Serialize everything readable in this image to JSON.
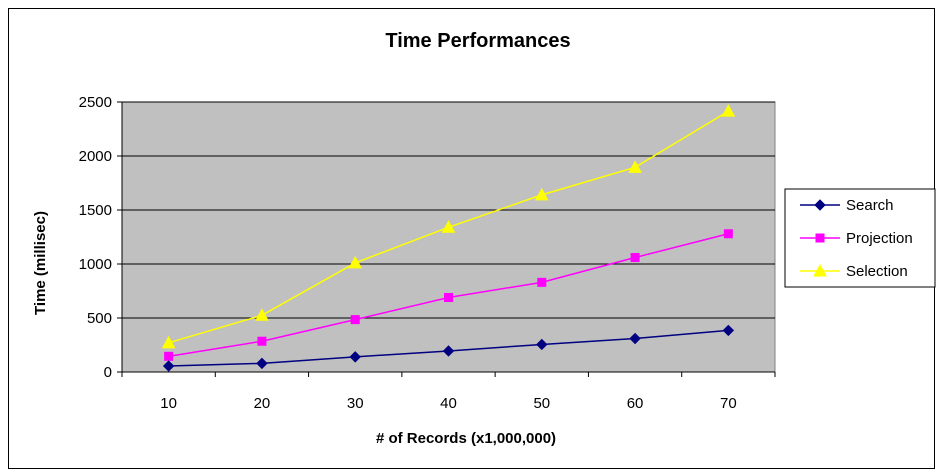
{
  "chart_data": {
    "type": "line",
    "title": "Time Performances",
    "xlabel": "# of Records (x1,000,000)",
    "ylabel": "Time (millisec)",
    "categories": [
      "10",
      "20",
      "30",
      "40",
      "50",
      "60",
      "70"
    ],
    "ylim": [
      0,
      2500
    ],
    "yticks": [
      "0",
      "500",
      "1000",
      "1500",
      "2000",
      "2500"
    ],
    "grid": true,
    "legend": "right",
    "plot_background": "#c0c0c0",
    "series": [
      {
        "name": "Search",
        "values": [
          55,
          80,
          140,
          195,
          255,
          310,
          385
        ],
        "color": "#000080",
        "marker": "diamond"
      },
      {
        "name": "Projection",
        "values": [
          145,
          285,
          485,
          690,
          830,
          1060,
          1280
        ],
        "color": "#ff00ff",
        "marker": "square"
      },
      {
        "name": "Selection",
        "values": [
          270,
          525,
          1010,
          1340,
          1640,
          1895,
          2415
        ],
        "color": "#ffff00",
        "marker": "triangle"
      }
    ]
  }
}
